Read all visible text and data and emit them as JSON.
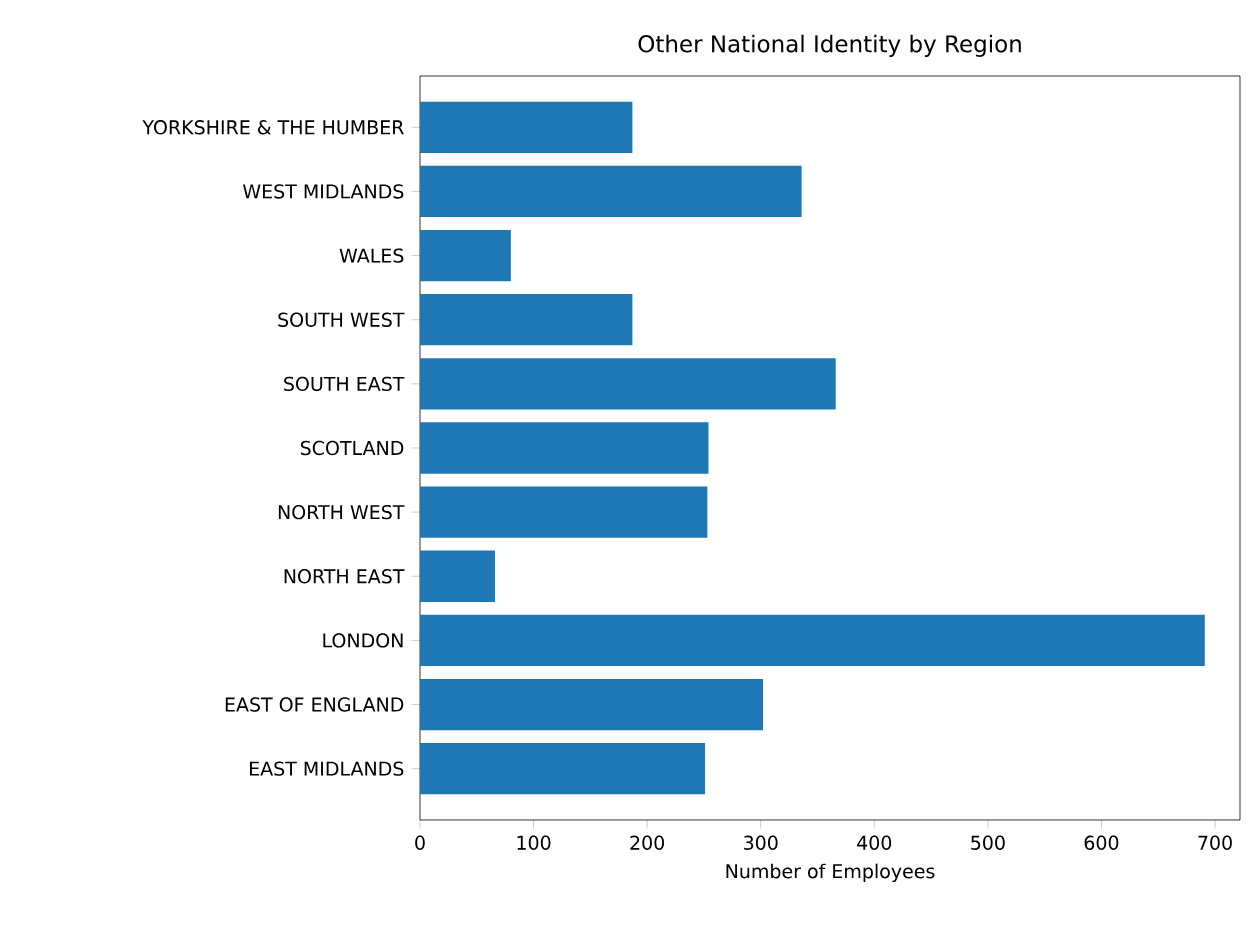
{
  "chart_data": {
    "type": "bar",
    "orientation": "horizontal",
    "title": "Other National Identity by Region",
    "xlabel": "Number of Employees",
    "categories": [
      "YORKSHIRE & THE HUMBER",
      "WEST MIDLANDS",
      "WALES",
      "SOUTH WEST",
      "SOUTH EAST",
      "SCOTLAND",
      "NORTH WEST",
      "NORTH EAST",
      "LONDON",
      "EAST OF ENGLAND",
      "EAST MIDLANDS"
    ],
    "values": [
      187,
      336,
      80,
      187,
      366,
      254,
      253,
      66,
      691,
      302,
      251
    ],
    "color": "#1f77b4",
    "xlim": [
      0,
      722
    ],
    "xticks": [
      0,
      100,
      200,
      300,
      400,
      500,
      600,
      700
    ],
    "grid": false
  }
}
